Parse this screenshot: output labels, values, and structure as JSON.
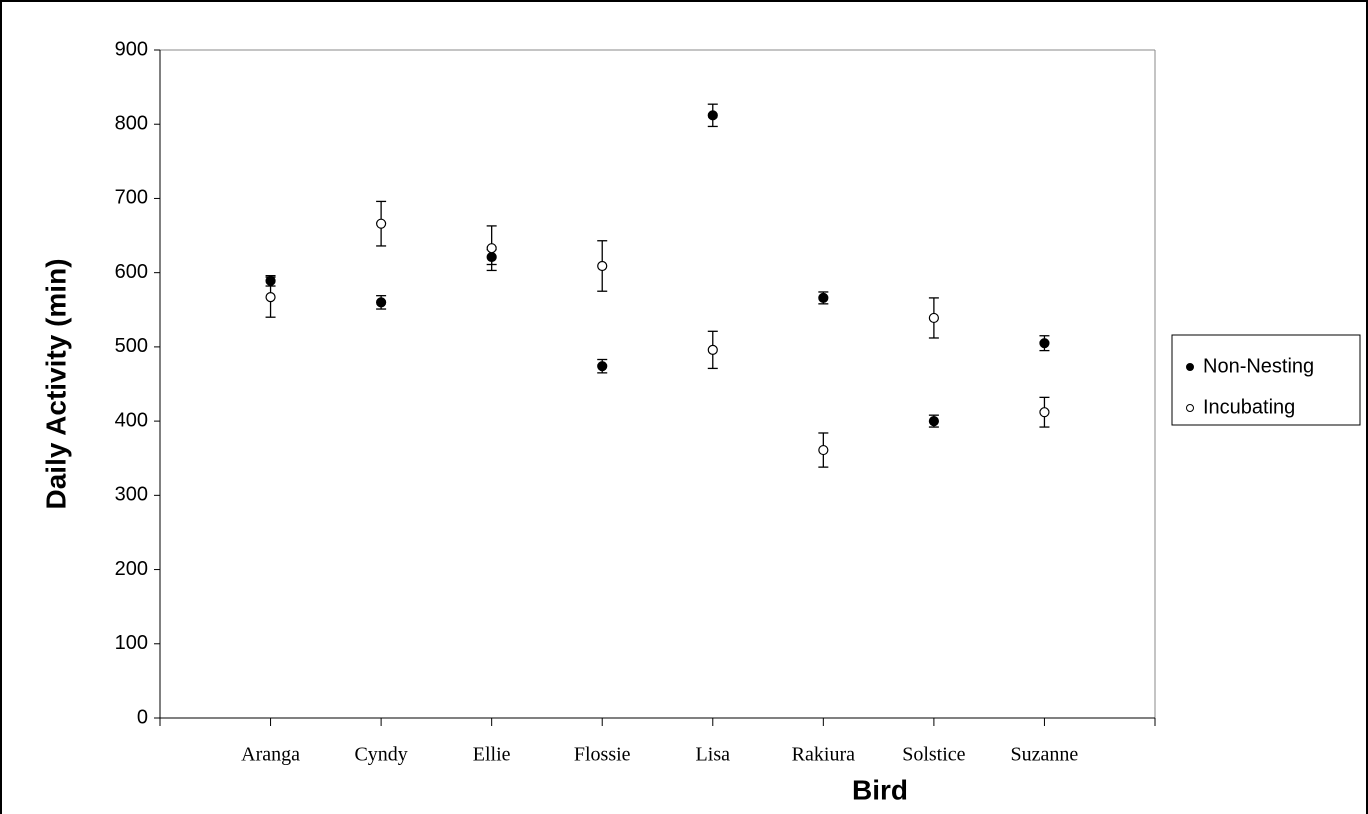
{
  "chart_data": {
    "type": "scatter",
    "x_label": "Bird",
    "y_label": "Daily Activity (min)",
    "categories": [
      "Aranga",
      "Cyndy",
      "Ellie",
      "Flossie",
      "Lisa",
      "Rakiura",
      "Solstice",
      "Suzanne"
    ],
    "series": [
      {
        "name": "Non-Nesting",
        "color": "#000000",
        "filled": true,
        "values": [
          589,
          560,
          621,
          474,
          812,
          566,
          400,
          505
        ],
        "errors": [
          7,
          9,
          10,
          9,
          15,
          8,
          8,
          10
        ]
      },
      {
        "name": "Incubating",
        "color": "#000000",
        "filled": false,
        "values": [
          567,
          666,
          633,
          609,
          496,
          361,
          539,
          412
        ],
        "errors": [
          27,
          30,
          30,
          34,
          25,
          23,
          27,
          20
        ]
      }
    ],
    "ylim": [
      0,
      900
    ],
    "yticks": [
      0,
      100,
      200,
      300,
      400,
      500,
      600,
      700,
      800,
      900
    ],
    "grid": false,
    "legend": "right"
  }
}
